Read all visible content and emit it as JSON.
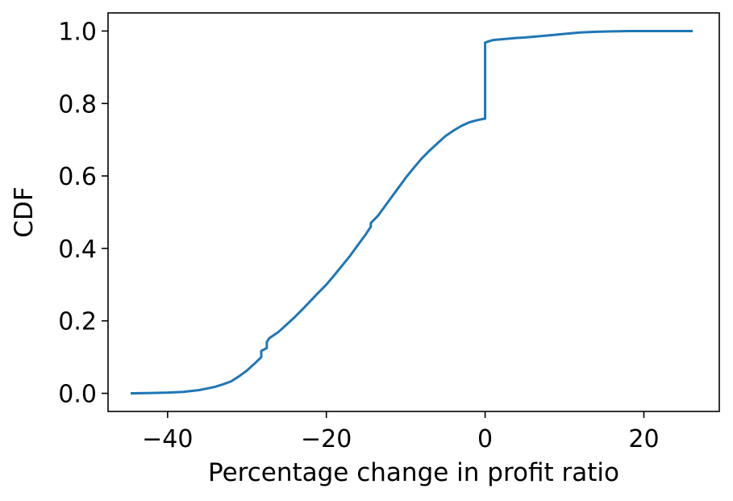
{
  "chart_data": {
    "type": "line",
    "title": "",
    "xlabel": "Percentage change in profit ratio",
    "ylabel": "CDF",
    "xlim": [
      -47.5,
      29.5
    ],
    "ylim": [
      -0.05,
      1.05
    ],
    "x_ticks": [
      -40,
      -20,
      0,
      20
    ],
    "x_tick_labels": [
      "−40",
      "−20",
      "0",
      "20"
    ],
    "y_ticks": [
      0.0,
      0.2,
      0.4,
      0.6,
      0.8,
      1.0
    ],
    "y_tick_labels": [
      "0.0",
      "0.2",
      "0.4",
      "0.6",
      "0.8",
      "1.0"
    ],
    "grid": false,
    "series": [
      {
        "color": "#1f77b4",
        "x": [
          -44.5,
          -42,
          -40,
          -38,
          -36,
          -34,
          -33,
          -32,
          -31,
          -30,
          -29,
          -28.2,
          -28.2,
          -27.5,
          -27.5,
          -27.2,
          -26,
          -25,
          -24,
          -23,
          -22,
          -21,
          -20,
          -19,
          -18,
          -17,
          -16,
          -15,
          -14.4,
          -14.4,
          -13.5,
          -13,
          -12,
          -11,
          -10,
          -9,
          -8,
          -7,
          -6,
          -5,
          -4,
          -3,
          -2,
          -1,
          -0.1,
          -0.1,
          0,
          0,
          0.5,
          1,
          2,
          3,
          4,
          5,
          6,
          8,
          10,
          12,
          14,
          16,
          18,
          20,
          22,
          24,
          26
        ],
        "y": [
          0.0,
          0.001,
          0.002,
          0.004,
          0.009,
          0.018,
          0.025,
          0.033,
          0.047,
          0.063,
          0.083,
          0.1,
          0.117,
          0.125,
          0.142,
          0.152,
          0.17,
          0.19,
          0.21,
          0.232,
          0.255,
          0.278,
          0.3,
          0.326,
          0.353,
          0.38,
          0.41,
          0.44,
          0.46,
          0.47,
          0.49,
          0.505,
          0.535,
          0.565,
          0.595,
          0.622,
          0.648,
          0.67,
          0.69,
          0.71,
          0.725,
          0.738,
          0.748,
          0.754,
          0.758,
          0.758,
          0.758,
          0.968,
          0.972,
          0.975,
          0.977,
          0.979,
          0.981,
          0.982,
          0.984,
          0.988,
          0.992,
          0.996,
          0.998,
          0.999,
          1.0,
          1.0,
          1.0,
          1.0,
          1.0
        ]
      }
    ]
  }
}
